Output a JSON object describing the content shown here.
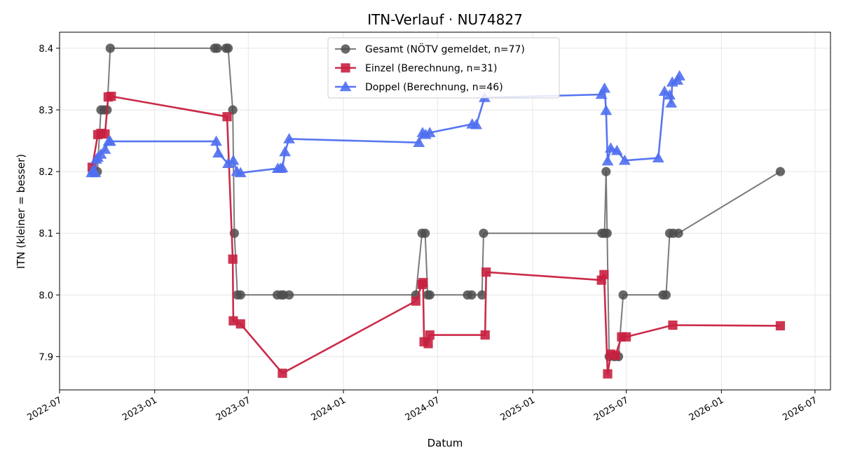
{
  "chart_data": {
    "type": "line",
    "title": "ITN-Verlauf · NU74827",
    "xlabel": "Datum",
    "ylabel": "ITN  (kleiner = besser)",
    "x_range": [
      "2022-07-01",
      "2026-07-31"
    ],
    "ylim": [
      7.846,
      8.426
    ],
    "x_ticks": [
      "2022-07",
      "2023-01",
      "2023-07",
      "2024-01",
      "2024-07",
      "2025-01",
      "2025-07",
      "2026-01",
      "2026-07"
    ],
    "y_ticks": [
      "7.9",
      "8.0",
      "8.1",
      "8.2",
      "8.3",
      "8.4"
    ],
    "grid": true,
    "legend_position": "top-center",
    "series": [
      {
        "name": "Gesamt (NÖTV gemeldet, n=77)",
        "color": "#4d4d4d",
        "marker": "circle",
        "points": [
          [
            "2022-09-04",
            8.2
          ],
          [
            "2022-09-12",
            8.2
          ],
          [
            "2022-09-19",
            8.3
          ],
          [
            "2022-09-25",
            8.3
          ],
          [
            "2022-10-01",
            8.3
          ],
          [
            "2022-10-07",
            8.4
          ],
          [
            "2023-04-27",
            8.4
          ],
          [
            "2023-05-02",
            8.4
          ],
          [
            "2023-05-19",
            8.4
          ],
          [
            "2023-05-23",
            8.4
          ],
          [
            "2023-06-01",
            8.3
          ],
          [
            "2023-06-04",
            8.1
          ],
          [
            "2023-06-10",
            8.0
          ],
          [
            "2023-06-16",
            8.0
          ],
          [
            "2023-08-26",
            8.0
          ],
          [
            "2023-09-03",
            8.0
          ],
          [
            "2023-09-07",
            8.0
          ],
          [
            "2023-09-18",
            8.0
          ],
          [
            "2024-05-20",
            8.0
          ],
          [
            "2024-06-01",
            8.1
          ],
          [
            "2024-06-07",
            8.1
          ],
          [
            "2024-06-12",
            8.0
          ],
          [
            "2024-06-16",
            8.0
          ],
          [
            "2024-08-28",
            8.0
          ],
          [
            "2024-09-05",
            8.0
          ],
          [
            "2024-09-25",
            8.0
          ],
          [
            "2024-09-28",
            8.1
          ],
          [
            "2025-05-15",
            8.1
          ],
          [
            "2025-05-20",
            8.1
          ],
          [
            "2025-05-23",
            8.2
          ],
          [
            "2025-05-25",
            8.1
          ],
          [
            "2025-05-29",
            7.9
          ],
          [
            "2025-06-08",
            7.9
          ],
          [
            "2025-06-16",
            7.9
          ],
          [
            "2025-06-25",
            8.0
          ],
          [
            "2025-09-10",
            8.0
          ],
          [
            "2025-09-16",
            8.0
          ],
          [
            "2025-09-23",
            8.1
          ],
          [
            "2025-09-30",
            8.1
          ],
          [
            "2025-10-10",
            8.1
          ],
          [
            "2026-04-25",
            8.2
          ]
        ]
      },
      {
        "name": "Einzel (Berechnung, n=31)",
        "color": "#c8203f",
        "marker": "square",
        "points": [
          [
            "2022-09-02",
            8.207
          ],
          [
            "2022-09-13",
            8.26
          ],
          [
            "2022-09-19",
            8.262
          ],
          [
            "2022-09-27",
            8.261
          ],
          [
            "2022-10-03",
            8.321
          ],
          [
            "2022-10-09",
            8.322
          ],
          [
            "2023-05-21",
            8.289
          ],
          [
            "2023-06-01",
            8.058
          ],
          [
            "2023-06-02",
            7.958
          ],
          [
            "2023-06-16",
            7.953
          ],
          [
            "2023-09-05",
            7.873
          ],
          [
            "2024-05-20",
            7.99
          ],
          [
            "2024-06-01",
            8.017
          ],
          [
            "2024-06-03",
            8.02
          ],
          [
            "2024-06-05",
            7.924
          ],
          [
            "2024-06-13",
            7.921
          ],
          [
            "2024-06-16",
            7.935
          ],
          [
            "2024-10-01",
            7.935
          ],
          [
            "2024-10-03",
            8.037
          ],
          [
            "2025-05-14",
            8.024
          ],
          [
            "2025-05-19",
            8.033
          ],
          [
            "2025-05-26",
            7.872
          ],
          [
            "2025-06-01",
            7.904
          ],
          [
            "2025-06-10",
            7.902
          ],
          [
            "2025-06-22",
            7.932
          ],
          [
            "2025-07-01",
            7.932
          ],
          [
            "2025-09-29",
            7.951
          ],
          [
            "2026-04-25",
            7.95
          ]
        ]
      },
      {
        "name": "Doppel (Berechnung, n=46)",
        "color": "#4f6ff0",
        "marker": "triangle",
        "points": [
          [
            "2022-09-01",
            8.198
          ],
          [
            "2022-09-04",
            8.203
          ],
          [
            "2022-09-08",
            8.198
          ],
          [
            "2022-09-10",
            8.22
          ],
          [
            "2022-09-13",
            8.223
          ],
          [
            "2022-09-19",
            8.228
          ],
          [
            "2022-09-27",
            8.236
          ],
          [
            "2022-10-04",
            8.249
          ],
          [
            "2022-10-07",
            8.249
          ],
          [
            "2023-04-30",
            8.249
          ],
          [
            "2023-05-04",
            8.23
          ],
          [
            "2023-05-23",
            8.213
          ],
          [
            "2023-06-02",
            8.218
          ],
          [
            "2023-06-09",
            8.2
          ],
          [
            "2023-06-16",
            8.198
          ],
          [
            "2023-08-27",
            8.205
          ],
          [
            "2023-09-01",
            8.205
          ],
          [
            "2023-09-05",
            8.206
          ],
          [
            "2023-09-10",
            8.232
          ],
          [
            "2023-09-18",
            8.253
          ],
          [
            "2024-05-26",
            8.247
          ],
          [
            "2024-06-02",
            8.263
          ],
          [
            "2024-06-08",
            8.26
          ],
          [
            "2024-06-16",
            8.263
          ],
          [
            "2024-09-06",
            8.277
          ],
          [
            "2024-09-14",
            8.276
          ],
          [
            "2024-09-30",
            8.32
          ],
          [
            "2025-05-14",
            8.325
          ],
          [
            "2025-05-20",
            8.335
          ],
          [
            "2025-05-23",
            8.299
          ],
          [
            "2025-05-26",
            8.217
          ],
          [
            "2025-06-01",
            8.238
          ],
          [
            "2025-06-13",
            8.234
          ],
          [
            "2025-06-28",
            8.218
          ],
          [
            "2025-09-01",
            8.222
          ],
          [
            "2025-09-13",
            8.33
          ],
          [
            "2025-09-23",
            8.324
          ],
          [
            "2025-09-26",
            8.311
          ],
          [
            "2025-09-28",
            8.345
          ],
          [
            "2025-10-08",
            8.348
          ],
          [
            "2025-10-12",
            8.355
          ]
        ]
      }
    ]
  }
}
